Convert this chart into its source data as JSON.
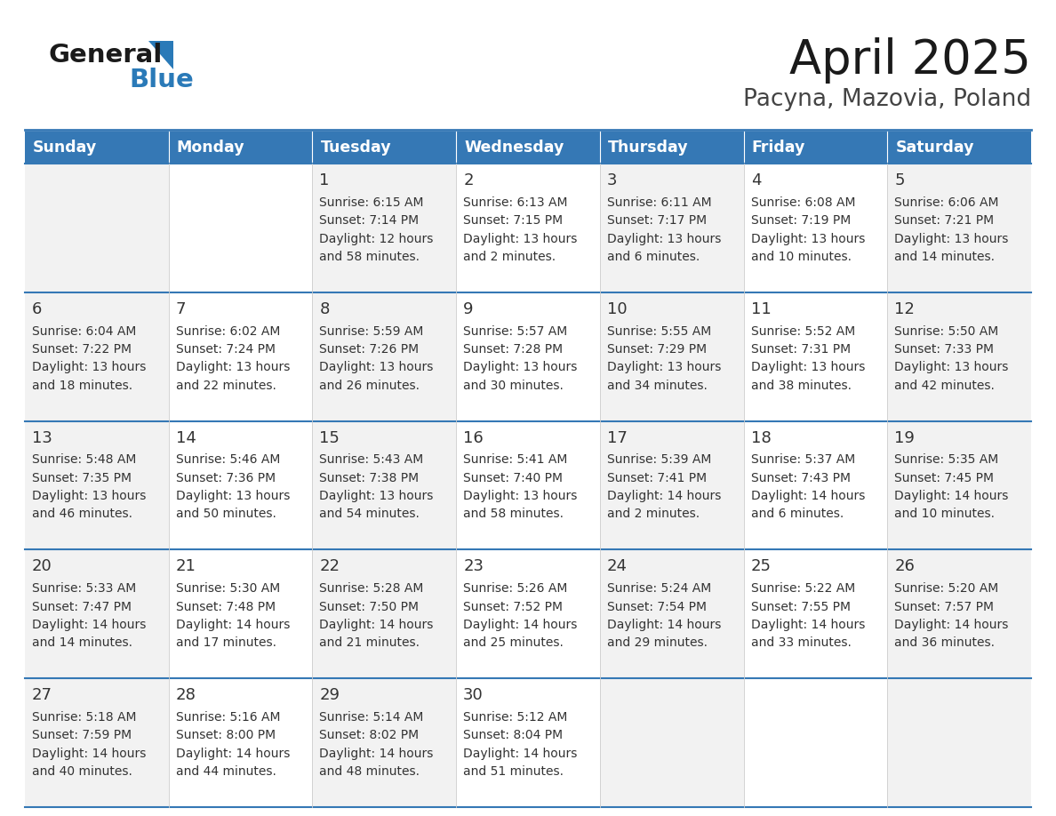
{
  "title": "April 2025",
  "subtitle": "Pacyna, Mazovia, Poland",
  "header_color": "#3578b5",
  "header_text_color": "#ffffff",
  "cell_bg_odd": "#f2f2f2",
  "cell_bg_even": "#ffffff",
  "separator_color": "#3578b5",
  "text_color": "#333333",
  "day_names": [
    "Sunday",
    "Monday",
    "Tuesday",
    "Wednesday",
    "Thursday",
    "Friday",
    "Saturday"
  ],
  "weeks": [
    [
      {
        "day": null,
        "sunrise": null,
        "sunset": null,
        "daylight": null
      },
      {
        "day": null,
        "sunrise": null,
        "sunset": null,
        "daylight": null
      },
      {
        "day": 1,
        "sunrise": "6:15 AM",
        "sunset": "7:14 PM",
        "daylight": "12 hours\nand 58 minutes."
      },
      {
        "day": 2,
        "sunrise": "6:13 AM",
        "sunset": "7:15 PM",
        "daylight": "13 hours\nand 2 minutes."
      },
      {
        "day": 3,
        "sunrise": "6:11 AM",
        "sunset": "7:17 PM",
        "daylight": "13 hours\nand 6 minutes."
      },
      {
        "day": 4,
        "sunrise": "6:08 AM",
        "sunset": "7:19 PM",
        "daylight": "13 hours\nand 10 minutes."
      },
      {
        "day": 5,
        "sunrise": "6:06 AM",
        "sunset": "7:21 PM",
        "daylight": "13 hours\nand 14 minutes."
      }
    ],
    [
      {
        "day": 6,
        "sunrise": "6:04 AM",
        "sunset": "7:22 PM",
        "daylight": "13 hours\nand 18 minutes."
      },
      {
        "day": 7,
        "sunrise": "6:02 AM",
        "sunset": "7:24 PM",
        "daylight": "13 hours\nand 22 minutes."
      },
      {
        "day": 8,
        "sunrise": "5:59 AM",
        "sunset": "7:26 PM",
        "daylight": "13 hours\nand 26 minutes."
      },
      {
        "day": 9,
        "sunrise": "5:57 AM",
        "sunset": "7:28 PM",
        "daylight": "13 hours\nand 30 minutes."
      },
      {
        "day": 10,
        "sunrise": "5:55 AM",
        "sunset": "7:29 PM",
        "daylight": "13 hours\nand 34 minutes."
      },
      {
        "day": 11,
        "sunrise": "5:52 AM",
        "sunset": "7:31 PM",
        "daylight": "13 hours\nand 38 minutes."
      },
      {
        "day": 12,
        "sunrise": "5:50 AM",
        "sunset": "7:33 PM",
        "daylight": "13 hours\nand 42 minutes."
      }
    ],
    [
      {
        "day": 13,
        "sunrise": "5:48 AM",
        "sunset": "7:35 PM",
        "daylight": "13 hours\nand 46 minutes."
      },
      {
        "day": 14,
        "sunrise": "5:46 AM",
        "sunset": "7:36 PM",
        "daylight": "13 hours\nand 50 minutes."
      },
      {
        "day": 15,
        "sunrise": "5:43 AM",
        "sunset": "7:38 PM",
        "daylight": "13 hours\nand 54 minutes."
      },
      {
        "day": 16,
        "sunrise": "5:41 AM",
        "sunset": "7:40 PM",
        "daylight": "13 hours\nand 58 minutes."
      },
      {
        "day": 17,
        "sunrise": "5:39 AM",
        "sunset": "7:41 PM",
        "daylight": "14 hours\nand 2 minutes."
      },
      {
        "day": 18,
        "sunrise": "5:37 AM",
        "sunset": "7:43 PM",
        "daylight": "14 hours\nand 6 minutes."
      },
      {
        "day": 19,
        "sunrise": "5:35 AM",
        "sunset": "7:45 PM",
        "daylight": "14 hours\nand 10 minutes."
      }
    ],
    [
      {
        "day": 20,
        "sunrise": "5:33 AM",
        "sunset": "7:47 PM",
        "daylight": "14 hours\nand 14 minutes."
      },
      {
        "day": 21,
        "sunrise": "5:30 AM",
        "sunset": "7:48 PM",
        "daylight": "14 hours\nand 17 minutes."
      },
      {
        "day": 22,
        "sunrise": "5:28 AM",
        "sunset": "7:50 PM",
        "daylight": "14 hours\nand 21 minutes."
      },
      {
        "day": 23,
        "sunrise": "5:26 AM",
        "sunset": "7:52 PM",
        "daylight": "14 hours\nand 25 minutes."
      },
      {
        "day": 24,
        "sunrise": "5:24 AM",
        "sunset": "7:54 PM",
        "daylight": "14 hours\nand 29 minutes."
      },
      {
        "day": 25,
        "sunrise": "5:22 AM",
        "sunset": "7:55 PM",
        "daylight": "14 hours\nand 33 minutes."
      },
      {
        "day": 26,
        "sunrise": "5:20 AM",
        "sunset": "7:57 PM",
        "daylight": "14 hours\nand 36 minutes."
      }
    ],
    [
      {
        "day": 27,
        "sunrise": "5:18 AM",
        "sunset": "7:59 PM",
        "daylight": "14 hours\nand 40 minutes."
      },
      {
        "day": 28,
        "sunrise": "5:16 AM",
        "sunset": "8:00 PM",
        "daylight": "14 hours\nand 44 minutes."
      },
      {
        "day": 29,
        "sunrise": "5:14 AM",
        "sunset": "8:02 PM",
        "daylight": "14 hours\nand 48 minutes."
      },
      {
        "day": 30,
        "sunrise": "5:12 AM",
        "sunset": "8:04 PM",
        "daylight": "14 hours\nand 51 minutes."
      },
      {
        "day": null,
        "sunrise": null,
        "sunset": null,
        "daylight": null
      },
      {
        "day": null,
        "sunrise": null,
        "sunset": null,
        "daylight": null
      },
      {
        "day": null,
        "sunrise": null,
        "sunset": null,
        "daylight": null
      }
    ]
  ],
  "figsize": [
    11.88,
    9.18
  ],
  "dpi": 100
}
